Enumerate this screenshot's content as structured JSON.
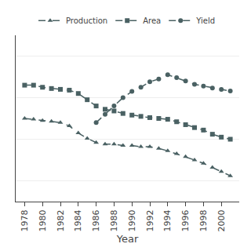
{
  "chart_data": {
    "type": "line",
    "x": [
      1978,
      1979,
      1980,
      1981,
      1982,
      1983,
      1984,
      1985,
      1986,
      1987,
      1988,
      1989,
      1990,
      1991,
      1992,
      1993,
      1994,
      1995,
      1996,
      1997,
      1998,
      1999,
      2000,
      2001
    ],
    "series": [
      {
        "name": "Production",
        "color": "#4a6163",
        "marker": "triangle",
        "line_style": "dashed",
        "values": [
          5.0,
          4.98,
          4.95,
          4.93,
          4.9,
          4.82,
          4.65,
          4.52,
          4.42,
          4.38,
          4.38,
          4.35,
          4.35,
          4.32,
          4.32,
          4.28,
          4.22,
          4.15,
          4.08,
          4.0,
          3.92,
          3.82,
          3.72,
          3.62
        ]
      },
      {
        "name": "Area",
        "color": "#4a6163",
        "marker": "square",
        "line_style": "dashed",
        "values": [
          5.8,
          5.8,
          5.75,
          5.72,
          5.7,
          5.68,
          5.6,
          5.45,
          5.3,
          5.22,
          5.18,
          5.12,
          5.08,
          5.05,
          5.02,
          5.0,
          4.98,
          4.92,
          4.85,
          4.78,
          4.72,
          4.62,
          4.55,
          4.5
        ]
      },
      {
        "name": "Yield",
        "color": "#4a6163",
        "marker": "circle",
        "line_style": "dashed",
        "values": [
          null,
          null,
          null,
          null,
          null,
          null,
          null,
          null,
          4.9,
          5.1,
          5.3,
          5.5,
          5.65,
          5.75,
          5.88,
          5.95,
          6.05,
          5.98,
          5.9,
          5.82,
          5.78,
          5.73,
          5.7,
          5.66
        ]
      }
    ],
    "xlabel": "Year",
    "xlim": [
      1977,
      2002
    ],
    "xticks": [
      1978,
      1980,
      1982,
      1984,
      1986,
      1988,
      1990,
      1992,
      1994,
      1996,
      1998,
      2000
    ],
    "ylim": [
      3.0,
      7.0
    ],
    "yticks": [
      3.5,
      4.5,
      5.5,
      6.5
    ],
    "tick_labels": "x",
    "grid": "y",
    "legend": "top"
  }
}
